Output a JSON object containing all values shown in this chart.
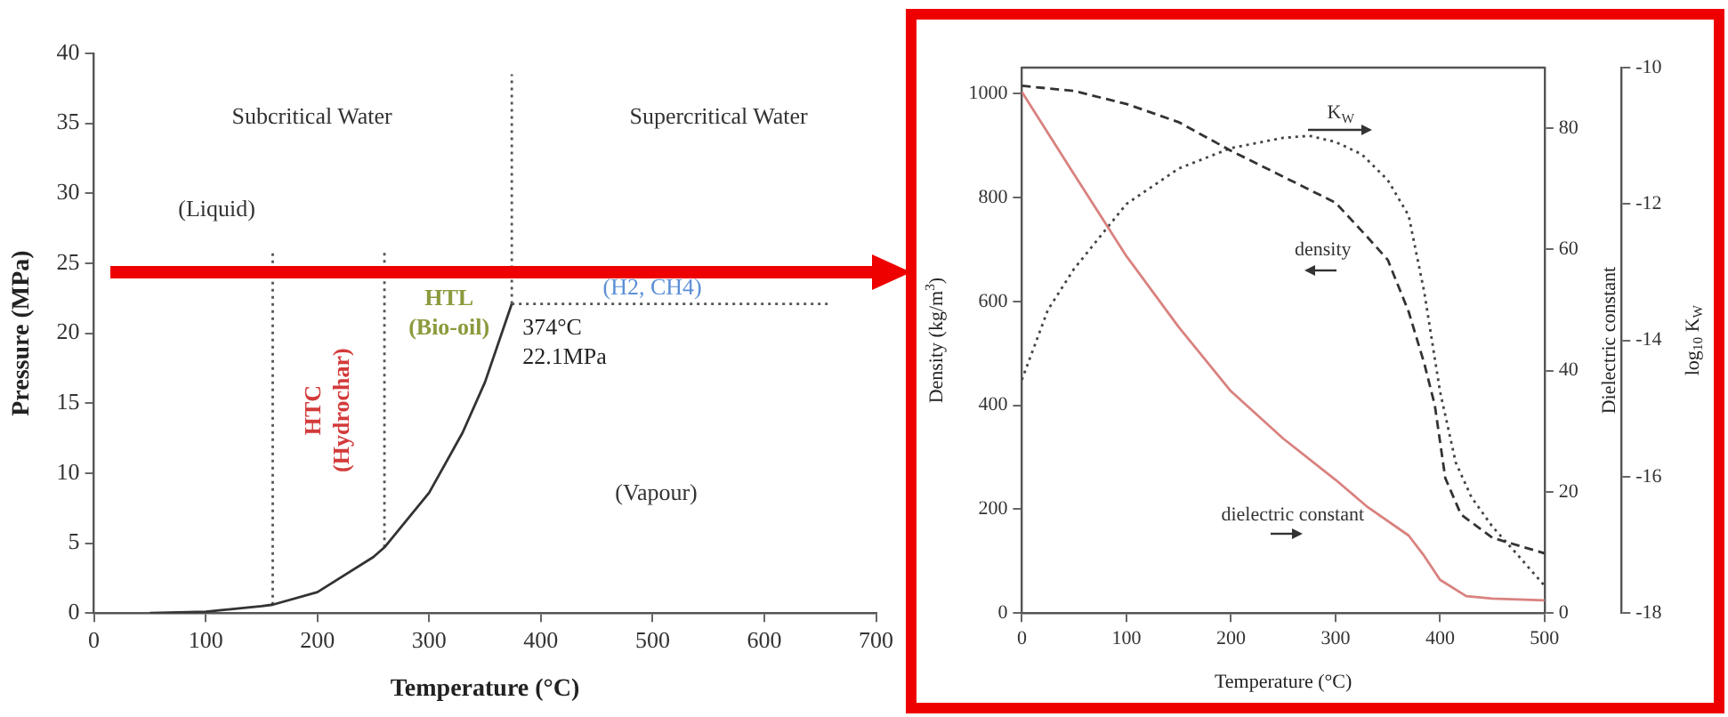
{
  "chart_data": [
    {
      "type": "line",
      "xlabel": "Temperature (°C)",
      "ylabel": "Pressure (MPa)",
      "xlim": [
        0,
        700
      ],
      "xticks": [
        0,
        100,
        200,
        300,
        400,
        500,
        600,
        700
      ],
      "ylim": [
        0,
        40
      ],
      "yticks": [
        0,
        5,
        10,
        15,
        20,
        25,
        30,
        35,
        40
      ],
      "marker": "none",
      "series": [
        {
          "color": "#333333",
          "x": [
            50,
            100,
            150,
            160,
            200,
            250,
            260,
            300,
            330,
            350,
            374
          ],
          "values": [
            0,
            0.1,
            0.5,
            0.6,
            1.5,
            4,
            4.7,
            8.6,
            12.9,
            16.5,
            22.1
          ]
        },
        {
          "color": "#555555",
          "line_style": "dotted",
          "x": [
            160,
            160
          ],
          "values": [
            0.6,
            26
          ]
        },
        {
          "color": "#555555",
          "line_style": "dotted",
          "x": [
            260,
            260
          ],
          "values": [
            4.7,
            26
          ]
        },
        {
          "color": "#555555",
          "line_style": "dotted",
          "x": [
            374,
            374
          ],
          "values": [
            22.1,
            38.5
          ]
        },
        {
          "color": "#555555",
          "line_style": "dotted",
          "x": [
            374,
            660
          ],
          "values": [
            22.1,
            22.1
          ]
        }
      ],
      "annotations": [
        "Subcritical Water",
        "Supercritical Water",
        "(Liquid)",
        "HTC\n(Hydrochar)",
        "HTL\n(Bio-oil)",
        "(H2, CH4)",
        {
          "text": "374°C\n22.1MPa",
          "x": 374,
          "y": 22.1
        },
        "(Vapour)"
      ]
    },
    {
      "type": "line",
      "xlabel": "Temperature (°C)",
      "ylabel": "Density (kg/m$^{3}$)",
      "y2label": "Dielectric constant",
      "y3label": "log$_{10}$ K$_{W}$",
      "xlim": [
        0,
        500
      ],
      "xticks": [
        0,
        100,
        200,
        300,
        400,
        500
      ],
      "ylim": [
        0,
        1050
      ],
      "yticks": [
        0,
        200,
        400,
        600,
        800,
        1000
      ],
      "y2lim": [
        0,
        90
      ],
      "y2ticks": [
        0,
        20,
        40,
        60,
        80
      ],
      "y3lim": [
        -18,
        -10
      ],
      "y3ticks": [
        -18,
        -16,
        -14,
        -12,
        -10
      ],
      "marker": "none",
      "series": [
        {
          "color": "#333333",
          "line_style": "dashed",
          "x": [
            0,
            50,
            100,
            150,
            200,
            250,
            300,
            330,
            350,
            370,
            385,
            395,
            405,
            420,
            450,
            500
          ],
          "values": [
            1015,
            1005,
            980,
            945,
            890,
            840,
            790,
            725,
            680,
            580,
            480,
            400,
            260,
            190,
            145,
            115
          ]
        },
        {
          "color": "#d9827f",
          "axis": "y2",
          "x": [
            0,
            50,
            100,
            150,
            200,
            250,
            300,
            330,
            370,
            385,
            400,
            425,
            450,
            500
          ],
          "values": [
            86,
            72.4,
            58.9,
            47.2,
            36.6,
            28.8,
            22,
            17.6,
            12.8,
            9.4,
            5.5,
            2.8,
            2.4,
            2.1
          ]
        },
        {
          "color": "#444444",
          "line_style": "dotted",
          "axis": "y3",
          "x": [
            0,
            25,
            50,
            100,
            150,
            200,
            250,
            275,
            300,
            325,
            350,
            370,
            385,
            400,
            415,
            430,
            450,
            475,
            500
          ],
          "values": [
            -14.58,
            -13.55,
            -12.95,
            -12,
            -11.48,
            -11.18,
            -11.03,
            -11,
            -11.09,
            -11.27,
            -11.65,
            -12.17,
            -13.3,
            -14.75,
            -15.79,
            -16.3,
            -16.73,
            -17.16,
            -17.6
          ]
        }
      ],
      "annotations": [
        "K$_{W}$",
        "density",
        "dielectric constant"
      ]
    }
  ]
}
